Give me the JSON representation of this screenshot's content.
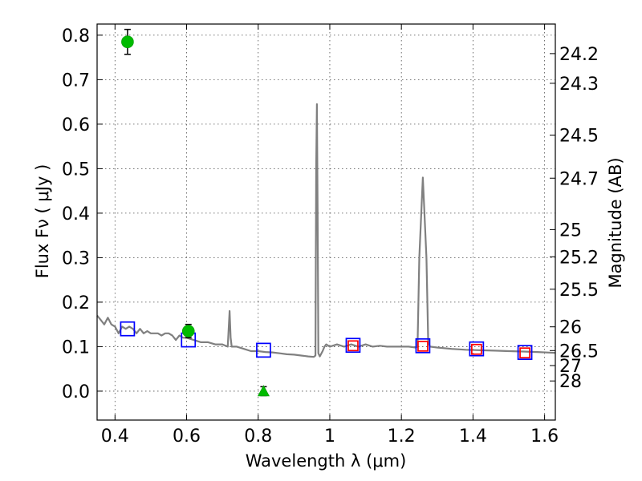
{
  "chart_data": {
    "type": "scatter",
    "title": "",
    "xlabel": "Wavelength  λ (μm)",
    "ylabel": "Flux  Fν  ( μJy )",
    "ylabel_right": "Magnitude (AB)",
    "xlim": [
      0.35,
      1.63
    ],
    "ylim": [
      -0.065,
      0.825
    ],
    "grid": true,
    "x_ticks": [
      {
        "value": 0.4,
        "label": "0.4"
      },
      {
        "value": 0.6,
        "label": "0.6"
      },
      {
        "value": 0.8,
        "label": "0.8"
      },
      {
        "value": 1.0,
        "label": "1"
      },
      {
        "value": 1.2,
        "label": "1.2"
      },
      {
        "value": 1.4,
        "label": "1.4"
      },
      {
        "value": 1.6,
        "label": "1.6"
      }
    ],
    "y_ticks": [
      {
        "value": 0.0,
        "label": "0.0"
      },
      {
        "value": 0.1,
        "label": "0.1"
      },
      {
        "value": 0.2,
        "label": "0.2"
      },
      {
        "value": 0.3,
        "label": "0.3"
      },
      {
        "value": 0.4,
        "label": "0.4"
      },
      {
        "value": 0.5,
        "label": "0.5"
      },
      {
        "value": 0.6,
        "label": "0.6"
      },
      {
        "value": 0.7,
        "label": "0.7"
      },
      {
        "value": 0.8,
        "label": "0.8"
      }
    ],
    "right_ticks": [
      {
        "mag": 24.2,
        "label": "24.2"
      },
      {
        "mag": 24.3,
        "label": "24.3"
      },
      {
        "mag": 24.5,
        "label": "24.5"
      },
      {
        "mag": 24.7,
        "label": "24.7"
      },
      {
        "mag": 25,
        "label": "25"
      },
      {
        "mag": 25.2,
        "label": "25.2"
      },
      {
        "mag": 25.5,
        "label": "25.5"
      },
      {
        "mag": 26,
        "label": "26"
      },
      {
        "mag": 26.5,
        "label": "26.5"
      },
      {
        "mag": 27,
        "label": "27"
      },
      {
        "mag": 28,
        "label": "28"
      }
    ],
    "spectrum": {
      "color": "#808080",
      "x": [
        0.35,
        0.36,
        0.37,
        0.38,
        0.39,
        0.4,
        0.41,
        0.42,
        0.43,
        0.44,
        0.45,
        0.46,
        0.47,
        0.48,
        0.49,
        0.5,
        0.51,
        0.52,
        0.53,
        0.54,
        0.55,
        0.56,
        0.57,
        0.58,
        0.59,
        0.6,
        0.62,
        0.64,
        0.66,
        0.68,
        0.7,
        0.715,
        0.72,
        0.723,
        0.726,
        0.73,
        0.74,
        0.76,
        0.78,
        0.8,
        0.82,
        0.84,
        0.86,
        0.88,
        0.9,
        0.92,
        0.94,
        0.955,
        0.96,
        0.962,
        0.964,
        0.966,
        0.968,
        0.972,
        0.98,
        0.985,
        0.99,
        1.0,
        1.02,
        1.04,
        1.06,
        1.08,
        1.1,
        1.12,
        1.14,
        1.16,
        1.18,
        1.2,
        1.22,
        1.24,
        1.245,
        1.25,
        1.26,
        1.27,
        1.275,
        1.28,
        1.3,
        1.34,
        1.38,
        1.42,
        1.46,
        1.5,
        1.54,
        1.58,
        1.63
      ],
      "y": [
        0.17,
        0.16,
        0.15,
        0.165,
        0.15,
        0.145,
        0.13,
        0.145,
        0.14,
        0.145,
        0.14,
        0.13,
        0.14,
        0.13,
        0.135,
        0.13,
        0.13,
        0.13,
        0.125,
        0.13,
        0.13,
        0.125,
        0.115,
        0.125,
        0.12,
        0.12,
        0.115,
        0.11,
        0.11,
        0.105,
        0.105,
        0.1,
        0.18,
        0.12,
        0.1,
        0.1,
        0.1,
        0.095,
        0.09,
        0.09,
        0.088,
        0.087,
        0.085,
        0.083,
        0.082,
        0.08,
        0.078,
        0.077,
        0.08,
        0.5,
        0.645,
        0.4,
        0.085,
        0.078,
        0.09,
        0.1,
        0.105,
        0.1,
        0.105,
        0.1,
        0.105,
        0.1,
        0.105,
        0.1,
        0.102,
        0.1,
        0.1,
        0.1,
        0.1,
        0.098,
        0.1,
        0.3,
        0.48,
        0.3,
        0.11,
        0.1,
        0.098,
        0.095,
        0.093,
        0.092,
        0.091,
        0.09,
        0.089,
        0.088,
        0.086
      ]
    },
    "series": [
      {
        "marker": "square",
        "color": "#0000ff",
        "x": [
          0.435,
          0.605,
          0.815,
          1.065,
          1.26,
          1.41,
          1.545
        ],
        "y": [
          0.14,
          0.115,
          0.092,
          0.103,
          0.102,
          0.095,
          0.087
        ]
      },
      {
        "marker": "square",
        "color": "#ff0000",
        "x": [
          1.065,
          1.26,
          1.41,
          1.545
        ],
        "y": [
          0.102,
          0.101,
          0.094,
          0.086
        ]
      },
      {
        "marker": "circle",
        "color": "#00bb00",
        "x": [
          0.435,
          0.605
        ],
        "y": [
          0.785,
          0.135
        ],
        "yerr": [
          0.028,
          0.015
        ]
      },
      {
        "marker": "triangle",
        "color": "#00bb00",
        "x": [
          0.815
        ],
        "y": [
          0.0
        ],
        "yerr": [
          0.01
        ]
      }
    ]
  }
}
